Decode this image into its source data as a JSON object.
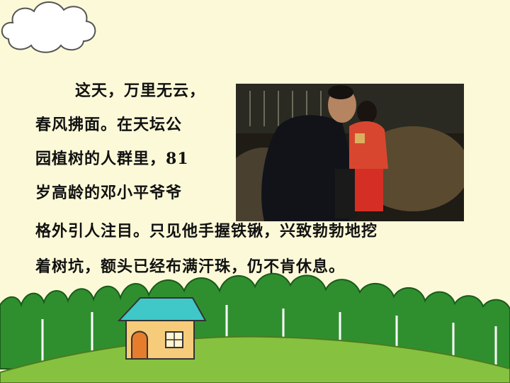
{
  "text": {
    "line1": "这天，万里无云，",
    "line2": "春风拂面。在天坛公",
    "line3": "园植树的人群里，81",
    "line4": "岁高龄的邓小平爷爷",
    "line5": "格外引人注目。只见他手握铁锹，兴致勃勃地挖",
    "line6": "着树坑，额头已经布满汗珠，仍不肯休息。"
  },
  "colors": {
    "background": "#fcf9d8",
    "grass": "#86c240",
    "tree": "#2f8f2f",
    "roof": "#40c8c8",
    "wall": "#f6cc7a",
    "door": "#e57d2c"
  },
  "icons": {
    "cloud": "cloud-icon",
    "house": "house-icon"
  }
}
